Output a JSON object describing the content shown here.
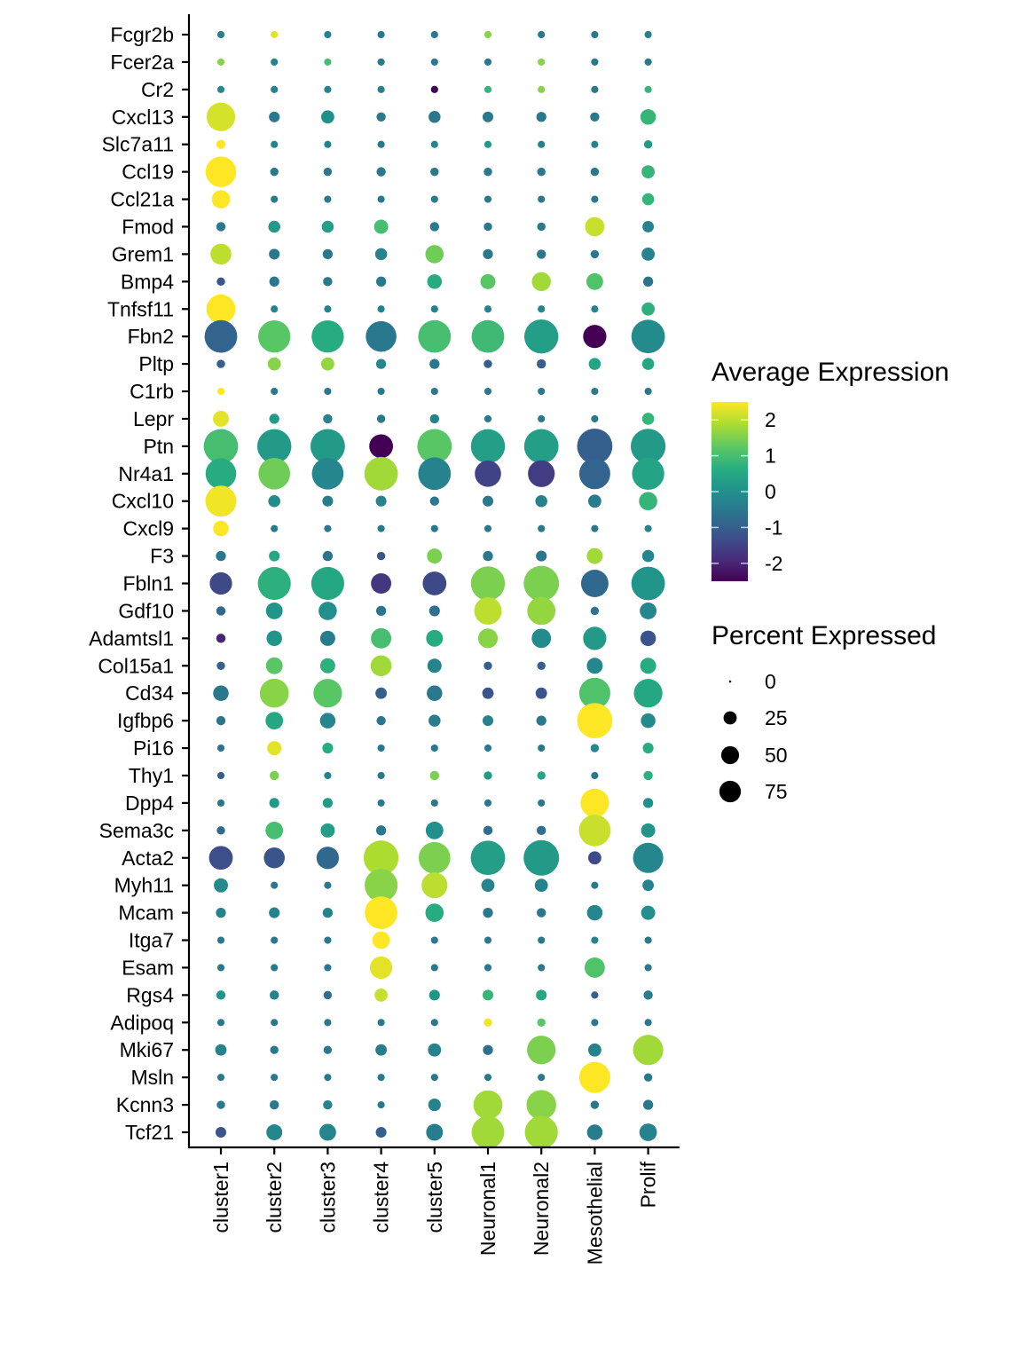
{
  "chart_data": {
    "type": "dotplot",
    "title": "",
    "xlabel": "",
    "ylabel": "",
    "categories": [
      "cluster1",
      "cluster2",
      "cluster3",
      "cluster4",
      "cluster5",
      "Neuronal1",
      "Neuronal2",
      "Mesothelial",
      "Prolif"
    ],
    "genes": [
      "Fcgr2b",
      "Fcer2a",
      "Cr2",
      "Cxcl13",
      "Slc7a11",
      "Ccl19",
      "Ccl21a",
      "Fmod",
      "Grem1",
      "Bmp4",
      "Tnfsf11",
      "Fbn2",
      "Pltp",
      "C1rb",
      "Lepr",
      "Ptn",
      "Nr4a1",
      "Cxcl10",
      "Cxcl9",
      "F3",
      "Fbln1",
      "Gdf10",
      "Adamtsl1",
      "Col15a1",
      "Cd34",
      "Igfbp6",
      "Pi16",
      "Thy1",
      "Dpp4",
      "Sema3c",
      "Acta2",
      "Myh11",
      "Mcam",
      "Itga7",
      "Esam",
      "Rgs4",
      "Adipoq",
      "Mki67",
      "Msln",
      "Kcnn3",
      "Tcf21"
    ],
    "avg_expression": [
      [
        -0.3,
        2.3,
        -0.3,
        -0.5,
        -0.5,
        1.6,
        -0.5,
        -0.5,
        -0.3
      ],
      [
        1.6,
        -0.3,
        1.0,
        -0.5,
        -0.5,
        -0.5,
        1.6,
        -0.5,
        -0.5
      ],
      [
        -0.1,
        -0.3,
        -0.3,
        -0.3,
        -2.5,
        0.8,
        1.6,
        -0.5,
        0.8
      ],
      [
        2.2,
        -0.5,
        0.0,
        -0.5,
        -0.5,
        -0.5,
        -0.5,
        -0.5,
        0.8
      ],
      [
        2.5,
        -0.3,
        -0.3,
        -0.5,
        -0.3,
        0.2,
        -0.3,
        -0.3,
        0.2
      ],
      [
        2.5,
        -0.5,
        -0.5,
        -0.5,
        -0.5,
        -0.5,
        -0.5,
        -0.5,
        0.8
      ],
      [
        2.5,
        -0.5,
        -0.5,
        -0.5,
        -0.5,
        -0.5,
        -0.5,
        -0.5,
        0.8
      ],
      [
        -0.5,
        0.2,
        0.3,
        1.0,
        -0.5,
        -0.5,
        -0.5,
        2.1,
        -0.3
      ],
      [
        2.0,
        -0.5,
        -0.5,
        -0.3,
        1.4,
        -0.5,
        -0.5,
        -0.5,
        -0.3
      ],
      [
        -1.2,
        -0.5,
        -0.5,
        -0.5,
        0.6,
        1.2,
        1.8,
        1.1,
        -0.6
      ],
      [
        2.5,
        -0.3,
        -0.3,
        -0.3,
        -0.3,
        -0.3,
        -0.3,
        -0.3,
        0.7
      ],
      [
        -0.9,
        1.2,
        0.6,
        -0.5,
        1.0,
        0.9,
        0.3,
        -2.5,
        -0.1
      ],
      [
        -1.0,
        1.6,
        1.7,
        -0.2,
        -0.5,
        -1.0,
        -1.0,
        0.4,
        0.5
      ],
      [
        2.5,
        -0.5,
        -0.5,
        -0.5,
        -0.5,
        -0.5,
        -0.5,
        -0.5,
        -0.5
      ],
      [
        2.3,
        0.2,
        -0.3,
        -0.5,
        -0.3,
        -0.5,
        -0.5,
        -0.5,
        0.8
      ],
      [
        1.0,
        0.2,
        0.2,
        -2.5,
        1.2,
        0.3,
        0.3,
        -1.0,
        0.2
      ],
      [
        0.6,
        1.4,
        -0.2,
        1.8,
        -0.3,
        -1.5,
        -1.6,
        -0.9,
        0.4
      ],
      [
        2.4,
        -0.1,
        -0.4,
        -0.3,
        -0.5,
        -0.5,
        -0.3,
        -0.4,
        0.8
      ],
      [
        2.5,
        -0.5,
        -0.5,
        -0.5,
        -0.5,
        -0.5,
        -0.5,
        -0.5,
        -0.3
      ],
      [
        -0.5,
        0.5,
        -0.6,
        -1.2,
        1.5,
        -0.5,
        -0.5,
        1.8,
        -0.2
      ],
      [
        -1.4,
        0.7,
        0.5,
        -1.7,
        -1.4,
        1.5,
        1.5,
        -0.8,
        0.1
      ],
      [
        -0.8,
        0.1,
        0.0,
        -0.6,
        -0.7,
        2.0,
        1.7,
        -0.6,
        -0.2
      ],
      [
        -2.0,
        0.1,
        -0.4,
        1.0,
        0.6,
        1.6,
        -0.1,
        0.2,
        -1.2
      ],
      [
        -1.0,
        1.2,
        0.7,
        1.8,
        -0.3,
        -1.0,
        -1.0,
        -0.2,
        0.6
      ],
      [
        -0.5,
        1.6,
        1.2,
        -1.0,
        -0.5,
        -1.2,
        -1.2,
        1.1,
        0.5
      ],
      [
        -0.6,
        0.5,
        -0.2,
        -0.6,
        -0.4,
        -0.3,
        -0.5,
        2.5,
        -0.1
      ],
      [
        -0.6,
        2.3,
        0.6,
        -0.5,
        -0.5,
        -0.5,
        -0.5,
        -0.2,
        0.6
      ],
      [
        -1.0,
        1.5,
        -0.3,
        -0.5,
        1.5,
        0.2,
        0.4,
        -0.5,
        0.7
      ],
      [
        -0.5,
        0.2,
        0.2,
        -0.5,
        -0.5,
        -0.5,
        -0.5,
        2.5,
        0.0
      ],
      [
        -0.8,
        1.0,
        0.3,
        -0.5,
        0.0,
        -0.7,
        -0.7,
        2.1,
        0.1
      ],
      [
        -1.3,
        -1.2,
        -0.8,
        1.9,
        1.5,
        0.3,
        0.2,
        -1.4,
        -0.2
      ],
      [
        -0.1,
        -0.5,
        -0.5,
        1.6,
        2.0,
        -0.3,
        -0.3,
        -0.5,
        -0.3
      ],
      [
        -0.3,
        -0.3,
        -0.3,
        2.5,
        0.6,
        -0.5,
        -0.5,
        -0.2,
        0.0
      ],
      [
        -0.5,
        -0.5,
        -0.5,
        2.5,
        -0.5,
        -0.5,
        -0.5,
        -0.3,
        -0.5
      ],
      [
        -0.5,
        -0.5,
        -0.5,
        2.3,
        -0.5,
        -0.5,
        -0.5,
        1.1,
        -0.5
      ],
      [
        0.1,
        -0.3,
        -0.7,
        2.1,
        0.1,
        0.8,
        0.5,
        -1.0,
        -0.4
      ],
      [
        -0.5,
        -0.5,
        -0.5,
        -0.5,
        -0.5,
        2.4,
        1.2,
        -0.5,
        -0.5
      ],
      [
        -0.3,
        -0.5,
        -0.5,
        -0.4,
        -0.3,
        -0.7,
        1.5,
        -0.3,
        1.8
      ],
      [
        -0.5,
        -0.5,
        -0.5,
        -0.5,
        -0.5,
        -0.5,
        -0.5,
        2.5,
        -0.5
      ],
      [
        -0.5,
        -0.5,
        -0.3,
        -0.5,
        -0.3,
        1.8,
        1.6,
        -0.5,
        -0.5
      ],
      [
        -1.2,
        -0.2,
        -0.2,
        -1.0,
        -0.4,
        1.8,
        1.8,
        -0.4,
        -0.3
      ]
    ],
    "pct_expressed": [
      [
        2,
        2,
        2,
        2,
        2,
        2,
        2,
        2,
        2
      ],
      [
        2,
        2,
        2,
        2,
        2,
        2,
        2,
        2,
        2
      ],
      [
        2,
        2,
        2,
        2,
        2,
        2,
        2,
        2,
        2
      ],
      [
        60,
        6,
        10,
        4,
        8,
        6,
        5,
        4,
        15
      ],
      [
        4,
        2,
        2,
        2,
        2,
        2,
        2,
        2,
        3
      ],
      [
        70,
        3,
        3,
        4,
        3,
        3,
        3,
        3,
        10
      ],
      [
        22,
        2,
        2,
        2,
        2,
        2,
        2,
        2,
        8
      ],
      [
        4,
        8,
        8,
        12,
        4,
        3,
        3,
        25,
        7
      ],
      [
        30,
        6,
        5,
        8,
        22,
        5,
        4,
        3,
        10
      ],
      [
        3,
        5,
        4,
        5,
        13,
        14,
        24,
        18,
        5
      ],
      [
        62,
        2,
        2,
        2,
        2,
        2,
        2,
        2,
        10
      ],
      [
        80,
        78,
        78,
        70,
        80,
        80,
        88,
        38,
        85
      ],
      [
        3,
        10,
        10,
        5,
        5,
        3,
        4,
        8,
        8
      ],
      [
        2,
        2,
        2,
        2,
        2,
        2,
        2,
        2,
        2
      ],
      [
        16,
        5,
        4,
        3,
        4,
        2,
        2,
        2,
        8
      ],
      [
        90,
        88,
        90,
        40,
        90,
        88,
        90,
        95,
        92
      ],
      [
        70,
        75,
        75,
        85,
        80,
        50,
        52,
        72,
        78
      ],
      [
        72,
        8,
        6,
        6,
        4,
        6,
        8,
        10,
        22
      ],
      [
        15,
        2,
        2,
        2,
        2,
        2,
        2,
        2,
        2
      ],
      [
        5,
        6,
        5,
        3,
        14,
        5,
        6,
        16,
        8
      ],
      [
        35,
        82,
        82,
        28,
        40,
        88,
        95,
        55,
        85
      ],
      [
        4,
        18,
        22,
        5,
        6,
        55,
        58,
        3,
        18
      ],
      [
        4,
        15,
        14,
        28,
        18,
        26,
        25,
        38,
        15
      ],
      [
        3,
        18,
        14,
        30,
        12,
        3,
        3,
        16,
        16
      ],
      [
        15,
        62,
        60,
        7,
        15,
        7,
        7,
        72,
        60
      ],
      [
        4,
        20,
        15,
        4,
        8,
        6,
        5,
        95,
        13
      ],
      [
        2,
        12,
        6,
        2,
        2,
        2,
        2,
        3,
        6
      ],
      [
        2,
        4,
        2,
        2,
        4,
        3,
        3,
        2,
        4
      ],
      [
        2,
        5,
        5,
        2,
        2,
        2,
        2,
        60,
        5
      ],
      [
        3,
        20,
        12,
        5,
        20,
        4,
        4,
        75,
        12
      ],
      [
        40,
        30,
        35,
        92,
        75,
        90,
        96,
        10,
        68
      ],
      [
        12,
        2,
        2,
        82,
        48,
        10,
        10,
        2,
        7
      ],
      [
        5,
        6,
        5,
        80,
        22,
        5,
        4,
        15,
        12
      ],
      [
        2,
        2,
        2,
        20,
        2,
        2,
        2,
        2,
        2
      ],
      [
        2,
        2,
        2,
        35,
        2,
        2,
        2,
        28,
        2
      ],
      [
        4,
        4,
        3,
        10,
        6,
        6,
        6,
        2,
        4
      ],
      [
        2,
        2,
        2,
        2,
        2,
        3,
        3,
        2,
        2
      ],
      [
        7,
        3,
        3,
        7,
        10,
        5,
        60,
        10,
        68
      ],
      [
        2,
        2,
        2,
        2,
        2,
        2,
        2,
        72,
        3
      ],
      [
        3,
        4,
        4,
        2,
        9,
        62,
        65,
        3,
        5
      ],
      [
        6,
        16,
        18,
        6,
        18,
        80,
        82,
        15,
        20
      ]
    ],
    "color_scale": {
      "title": "Average Expression",
      "palette": "viridis",
      "range": [
        -2.5,
        2.5
      ],
      "ticks": [
        "2",
        "1",
        "0",
        "-1",
        "-2"
      ],
      "tick_values": [
        2,
        1,
        0,
        -1,
        -2
      ],
      "colors": [
        "#440154",
        "#3b528b",
        "#21908c",
        "#5dc863",
        "#fde725"
      ]
    },
    "size_scale": {
      "title": "Percent Expressed",
      "ticks": [
        "0",
        "25",
        "50",
        "75"
      ],
      "tick_values": [
        0,
        25,
        50,
        75
      ]
    },
    "legend_position": "right",
    "grid": false
  }
}
